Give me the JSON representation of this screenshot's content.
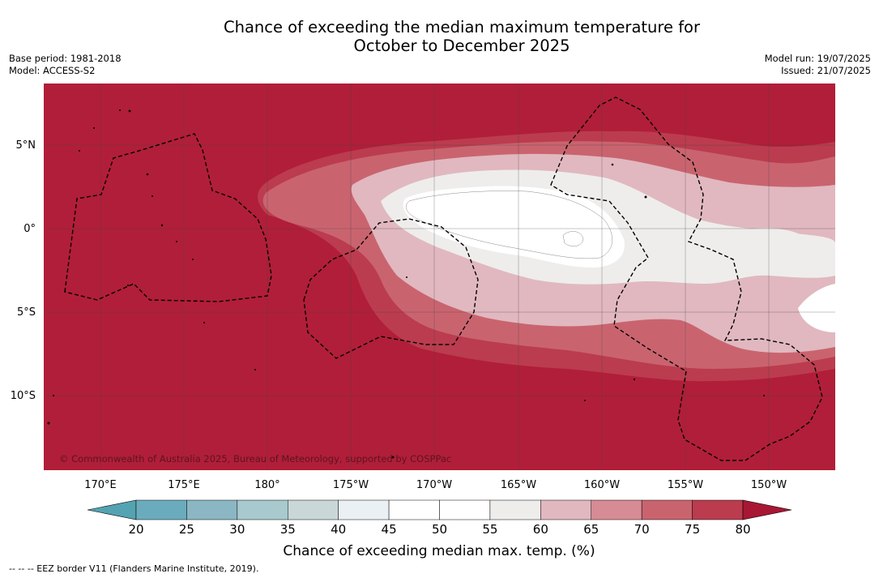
{
  "title": {
    "line1": "Chance of exceeding the median maximum temperature for",
    "line2": "October to December 2025"
  },
  "meta_left": {
    "base_period": "Base period: 1981-2018",
    "model": "Model: ACCESS-S2"
  },
  "meta_right": {
    "model_run": "Model run: 19/07/2025",
    "issued": "Issued: 21/07/2025"
  },
  "map": {
    "copyright": "© Commonwealth of Australia 2025, Bureau of Meteorology, supported by COSPPac",
    "longitude_labels": [
      "170°E",
      "175°E",
      "180°",
      "175°W",
      "170°W",
      "165°W",
      "160°W",
      "155°W",
      "150°W"
    ],
    "latitude_labels": [
      "5°N",
      "0°",
      "5°S",
      "10°S"
    ],
    "background_color": "#b11e39"
  },
  "colorbar": {
    "ticks": [
      "20",
      "25",
      "30",
      "35",
      "40",
      "45",
      "50",
      "55",
      "60",
      "65",
      "70",
      "75",
      "80"
    ],
    "colors": [
      "#6aacbd",
      "#8ab7c3",
      "#a8c9cd",
      "#c9d7d8",
      "#eaf0f3",
      "#ffffff",
      "#ffffff",
      "#eeedec",
      "#e1b8bf",
      "#d78b94",
      "#c9646f",
      "#bb3c4e"
    ],
    "under_color": "#53a3b2",
    "over_color": "#a81734",
    "label": "Chance of exceeding median max. temp. (%)"
  },
  "footer": {
    "legend_note": "-- -- -- EEZ border V11 (Flanders Marine Institute, 2019)."
  }
}
